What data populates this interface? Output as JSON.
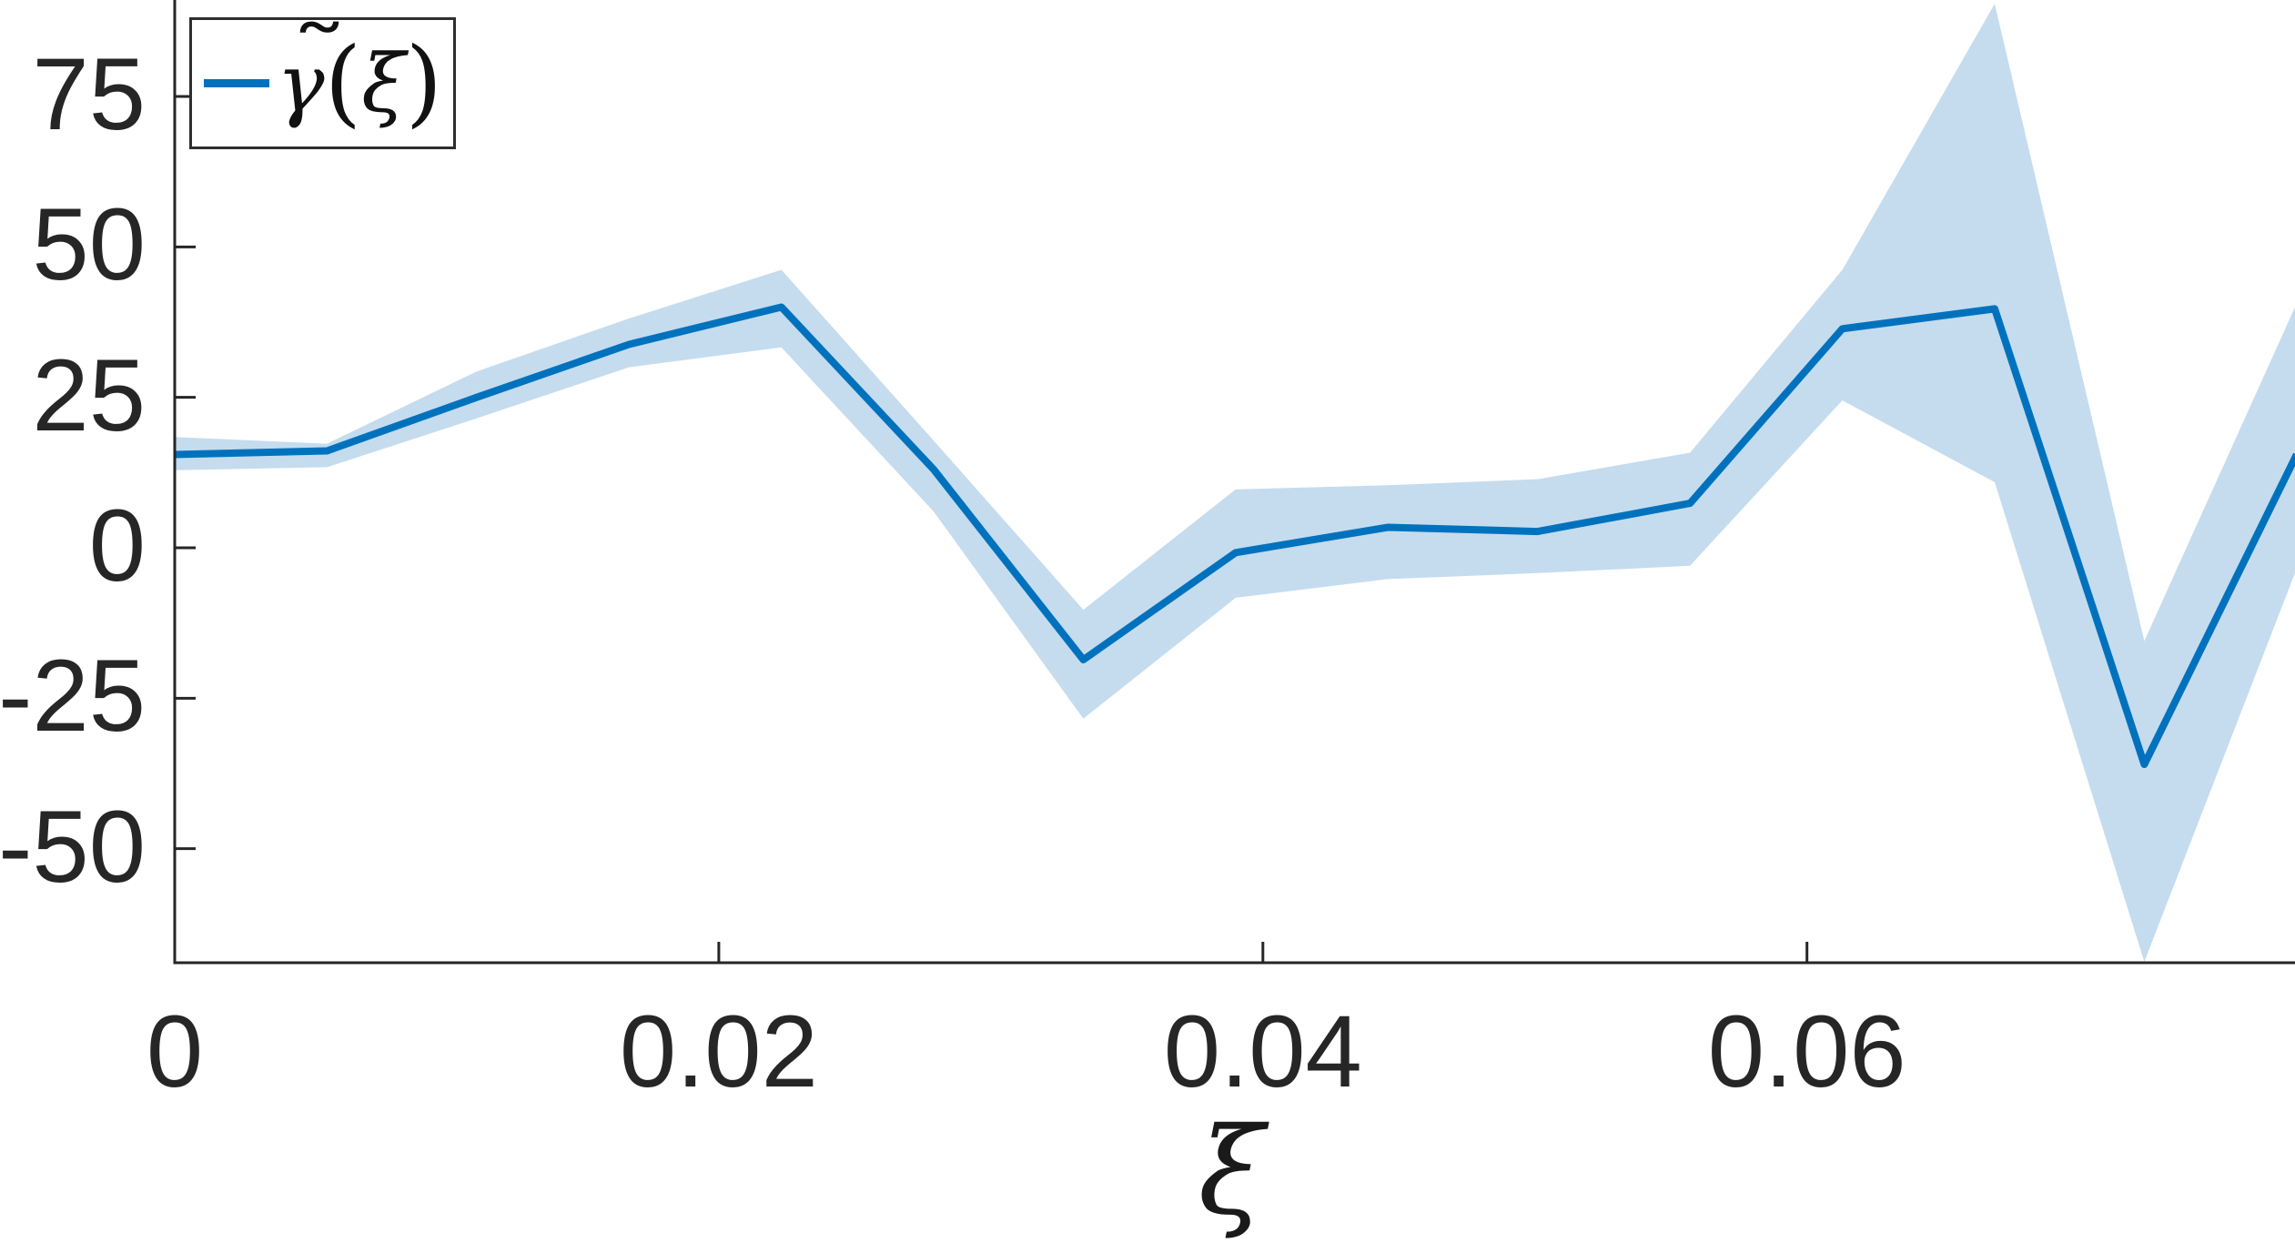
{
  "legend": {
    "label": "γ̃(ξ)",
    "gamma": "γ",
    "tilde": "˜",
    "open": "(",
    "xi": "ξ",
    "close": ")"
  },
  "chart_data": {
    "type": "line",
    "title": "",
    "xlabel": "ξ",
    "ylabel": "",
    "x": [
      0,
      0.0056,
      0.0111,
      0.0167,
      0.0223,
      0.0279,
      0.0334,
      0.039,
      0.0446,
      0.0501,
      0.0557,
      0.0613,
      0.0669,
      0.0724,
      0.078
    ],
    "series": [
      {
        "name": "γ̃(ξ)",
        "values": [
          15.5,
          16.1,
          25.0,
          33.8,
          40.0,
          13.0,
          -18.6,
          -0.8,
          3.4,
          2.7,
          7.4,
          36.4,
          39.7,
          -36.0,
          15.5
        ]
      }
    ],
    "band": {
      "name": "confidence-band",
      "upper": [
        18.4,
        17.3,
        29.3,
        38.1,
        46.2,
        17.8,
        -10.3,
        9.7,
        10.4,
        11.4,
        15.8,
        46.2,
        90.4,
        -15.5,
        40.6
      ],
      "lower": [
        12.9,
        13.4,
        21.5,
        30.0,
        33.3,
        6.0,
        -28.4,
        -8.3,
        -5.2,
        -4.2,
        -3.0,
        24.5,
        10.9,
        -68.8,
        -3.5
      ]
    },
    "xticks": [
      0,
      0.02,
      0.04,
      0.06
    ],
    "xtick_labels": [
      "0",
      "0.02",
      "0.04",
      "0.06"
    ],
    "yticks": [
      75,
      50,
      25,
      0,
      -25,
      -50
    ],
    "ytick_labels": [
      "75",
      "50",
      "25",
      "0",
      "-25",
      "-50"
    ],
    "xlim": [
      0,
      0.078
    ],
    "ylim": [
      -69,
      91
    ],
    "grid": false,
    "legend_position": "top-left",
    "colors": {
      "line": "#0072BD",
      "band": "#C5DCEF",
      "axis": "#262626",
      "text": "#262626"
    }
  }
}
